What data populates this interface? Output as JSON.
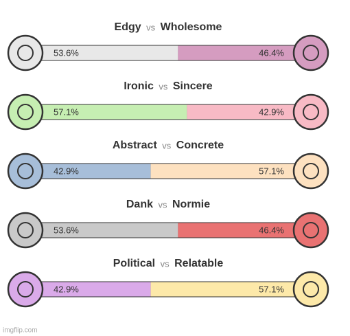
{
  "rows": [
    {
      "left": "Edgy",
      "vs": "vs",
      "right": "Wholesome",
      "values": [
        53.6,
        46.4
      ],
      "value_labels": [
        "53.6%",
        "46.4%"
      ],
      "colors": [
        "#e8e8e8",
        "#d59cc0"
      ]
    },
    {
      "left": "Ironic",
      "vs": "vs",
      "right": "Sincere",
      "values": [
        57.1,
        42.9
      ],
      "value_labels": [
        "57.1%",
        "42.9%"
      ],
      "colors": [
        "#c6eeb2",
        "#f8bac5"
      ]
    },
    {
      "left": "Abstract",
      "vs": "vs",
      "right": "Concrete",
      "values": [
        42.9,
        57.1
      ],
      "value_labels": [
        "42.9%",
        "57.1%"
      ],
      "colors": [
        "#a7bed9",
        "#fde1c0"
      ]
    },
    {
      "left": "Dank",
      "vs": "vs",
      "right": "Normie",
      "values": [
        53.6,
        46.4
      ],
      "value_labels": [
        "53.6%",
        "46.4%"
      ],
      "colors": [
        "#c9c9c9",
        "#e97272"
      ]
    },
    {
      "left": "Political",
      "vs": "vs",
      "right": "Relatable",
      "values": [
        42.9,
        57.1
      ],
      "value_labels": [
        "42.9%",
        "57.1%"
      ],
      "colors": [
        "#daaae9",
        "#fde9a9"
      ]
    }
  ],
  "watermark": "imgflip.com"
}
